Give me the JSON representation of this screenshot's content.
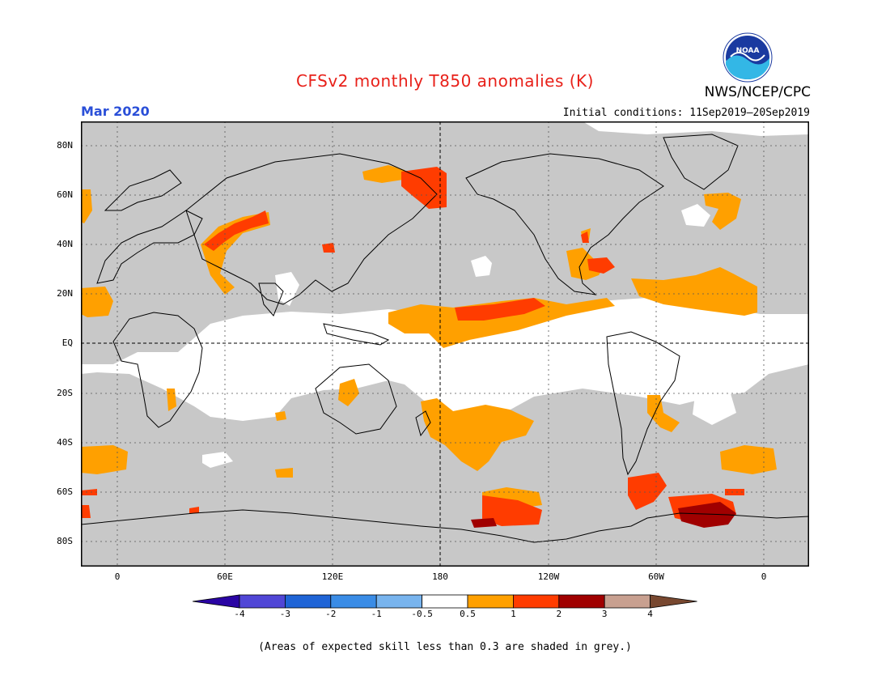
{
  "title": "CFSv2 monthly T850 anomalies (K)",
  "month": "Mar 2020",
  "initial_conditions": "Initial conditions: 11Sep2019—20Sep2019",
  "agency": "NWS/NCEP/CPC",
  "logo": {
    "text": "NOAA",
    "icon": "noaa-logo-icon"
  },
  "lat_labels": [
    "80N",
    "60N",
    "40N",
    "20N",
    "EQ",
    "20S",
    "40S",
    "60S",
    "80S"
  ],
  "lon_labels": [
    "0",
    "60E",
    "120E",
    "180",
    "120W",
    "60W",
    "0"
  ],
  "colorbar": {
    "labels": [
      "-4",
      "-3",
      "-2",
      "-1",
      "-0.5",
      "0.5",
      "1",
      "2",
      "3",
      "4"
    ],
    "colors": [
      "#2a04a4",
      "#5046d6",
      "#1f64d6",
      "#3a8ce6",
      "#78b4ee",
      "#ffffff",
      "#ffa000",
      "#ff3c00",
      "#a00000",
      "#c8a090",
      "#784830"
    ]
  },
  "note": "(Areas of expected skill less than 0.3 are shaded in grey.)",
  "colors": {
    "grey_skill": "#c8c8c8",
    "title_red": "#e8211a",
    "month_blue": "#2a4fd8"
  }
}
